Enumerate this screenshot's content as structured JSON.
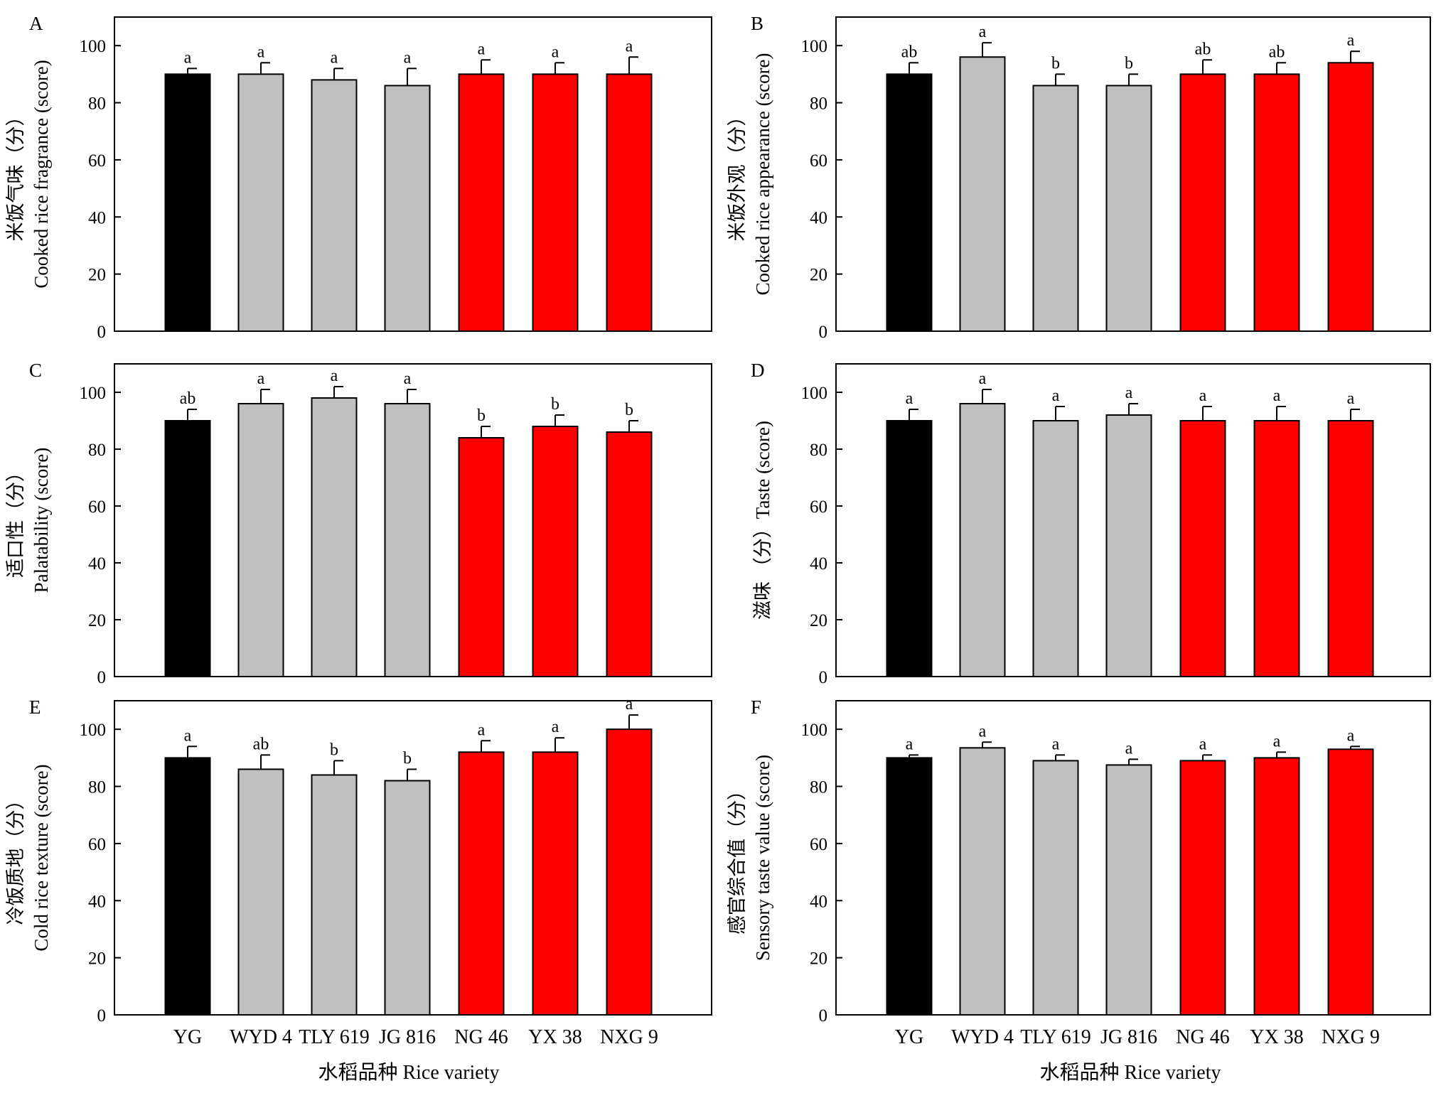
{
  "figure": {
    "xlabel": "水稻品种 Rice variety",
    "categories": [
      "YG",
      "WYD 4",
      "TLY 619",
      "JG 816",
      "NG 46",
      "YX 38",
      "NXG 9"
    ],
    "colors": {
      "black": "#000000",
      "gray": "#c0c0c0",
      "red": "#ff0000"
    },
    "category_colors": [
      "black",
      "gray",
      "gray",
      "gray",
      "red",
      "red",
      "red"
    ]
  },
  "chart_data": [
    {
      "panel": "A",
      "type": "bar",
      "ylabel_line1": "米饭气味（分）",
      "ylabel_line2": "Cooked rice fragrance (score)",
      "ylim": [
        0,
        110
      ],
      "yticks": [
        0,
        20,
        40,
        60,
        80,
        100
      ],
      "categories": [
        "YG",
        "WYD 4",
        "TLY 619",
        "JG 816",
        "NG 46",
        "YX 38",
        "NXG 9"
      ],
      "values": [
        90,
        90,
        88,
        86,
        90,
        90,
        90
      ],
      "errors": [
        2,
        4,
        4,
        6,
        5,
        4,
        6
      ],
      "significance": [
        "a",
        "a",
        "a",
        "a",
        "a",
        "a",
        "a"
      ]
    },
    {
      "panel": "B",
      "type": "bar",
      "ylabel_line1": "米饭外观（分）",
      "ylabel_line2": "Cooked rice appearance (score)",
      "ylim": [
        0,
        110
      ],
      "yticks": [
        0,
        20,
        40,
        60,
        80,
        100
      ],
      "categories": [
        "YG",
        "WYD 4",
        "TLY 619",
        "JG 816",
        "NG 46",
        "YX 38",
        "NXG 9"
      ],
      "values": [
        90,
        96,
        86,
        86,
        90,
        90,
        94
      ],
      "errors": [
        4,
        5,
        4,
        4,
        5,
        4,
        4
      ],
      "significance": [
        "ab",
        "a",
        "b",
        "b",
        "ab",
        "ab",
        "a"
      ]
    },
    {
      "panel": "C",
      "type": "bar",
      "ylabel_line1": "适口性（分）",
      "ylabel_line2": "Palatability (score)",
      "ylim": [
        0,
        110
      ],
      "yticks": [
        0,
        20,
        40,
        60,
        80,
        100
      ],
      "categories": [
        "YG",
        "WYD 4",
        "TLY 619",
        "JG 816",
        "NG 46",
        "YX 38",
        "NXG 9"
      ],
      "values": [
        90,
        96,
        98,
        96,
        84,
        88,
        86
      ],
      "errors": [
        4,
        5,
        4,
        5,
        4,
        4,
        4
      ],
      "significance": [
        "ab",
        "a",
        "a",
        "a",
        "b",
        "b",
        "b"
      ]
    },
    {
      "panel": "D",
      "type": "bar",
      "ylabel_line1": "",
      "ylabel_line2": "滋味 （分）Taste (score)",
      "ylim": [
        0,
        110
      ],
      "yticks": [
        0,
        20,
        40,
        60,
        80,
        100
      ],
      "categories": [
        "YG",
        "WYD 4",
        "TLY 619",
        "JG 816",
        "NG 46",
        "YX 38",
        "NXG 9"
      ],
      "values": [
        90,
        96,
        90,
        92,
        90,
        90,
        90
      ],
      "errors": [
        4,
        5,
        5,
        4,
        5,
        5,
        4
      ],
      "significance": [
        "a",
        "a",
        "a",
        "a",
        "a",
        "a",
        "a"
      ]
    },
    {
      "panel": "E",
      "type": "bar",
      "ylabel_line1": "冷饭质地（分）",
      "ylabel_line2": "Cold rice texture (score)",
      "ylim": [
        0,
        110
      ],
      "yticks": [
        0,
        20,
        40,
        60,
        80,
        100
      ],
      "categories": [
        "YG",
        "WYD 4",
        "TLY 619",
        "JG 816",
        "NG 46",
        "YX 38",
        "NXG 9"
      ],
      "values": [
        90,
        86,
        84,
        82,
        92,
        92,
        100
      ],
      "errors": [
        4,
        5,
        5,
        4,
        4,
        5,
        5
      ],
      "significance": [
        "a",
        "ab",
        "b",
        "b",
        "a",
        "a",
        "a"
      ]
    },
    {
      "panel": "F",
      "type": "bar",
      "ylabel_line1": "感官综合值（分）",
      "ylabel_line2": "Sensory taste value (score)",
      "ylim": [
        0,
        110
      ],
      "yticks": [
        0,
        20,
        40,
        60,
        80,
        100
      ],
      "categories": [
        "YG",
        "WYD 4",
        "TLY 619",
        "JG 816",
        "NG 46",
        "YX 38",
        "NXG 9"
      ],
      "values": [
        90,
        93.5,
        89,
        87.5,
        89,
        90,
        93
      ],
      "errors": [
        1,
        2,
        2,
        2,
        2,
        2,
        1
      ],
      "significance": [
        "a",
        "a",
        "a",
        "a",
        "a",
        "a",
        "a"
      ]
    }
  ]
}
